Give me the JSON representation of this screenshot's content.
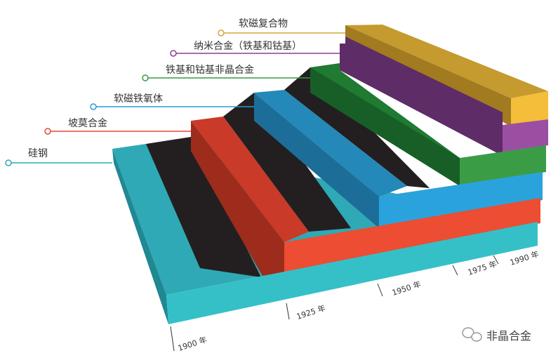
{
  "layers": [
    {
      "label": "硅钢"
    },
    {
      "label": "坡莫合金"
    },
    {
      "label": "软磁铁氧体"
    },
    {
      "label": "铁基和钴基非晶合金"
    },
    {
      "label": "纳米合金（铁基和钴基）"
    },
    {
      "label": "软磁复合物"
    }
  ],
  "axis_labels": [
    "1900 年",
    "1925 年",
    "1950 年",
    "1975 年",
    "1990 年"
  ],
  "watermark": "非晶合金"
}
